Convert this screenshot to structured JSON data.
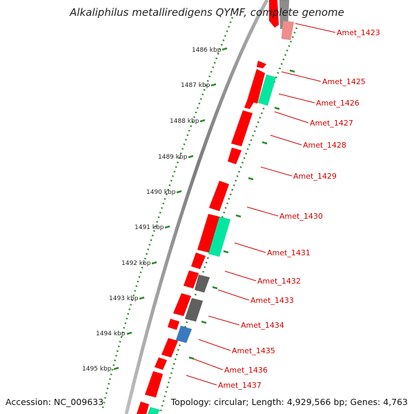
{
  "header": {
    "title": "Alkaliphilus metalliredigens QYMF, complete genome"
  },
  "footer": {
    "accession": "Accession: NC_009633",
    "summary": "Topology: circular; Length: 4,929,566 bp; Genes: 4,763"
  },
  "ticks": [
    "1486 kbp",
    "1487 kbp",
    "1488 kbp",
    "1489 kbp",
    "1490 kbp",
    "1491 kbp",
    "1492 kbp",
    "1493 kbp",
    "1494 kbp",
    "1495 kbp"
  ],
  "gene_labels": [
    "Amet_1423",
    "Amet_1425",
    "Amet_1426",
    "Amet_1427",
    "Amet_1428",
    "Amet_1429",
    "Amet_1430",
    "Amet_1431",
    "Amet_1432",
    "Amet_1433",
    "Amet_1434",
    "Amet_1435",
    "Amet_1436",
    "Amet_1437"
  ],
  "colors": {
    "cds_red": "#ff0000",
    "cds_green": "#00e8a0",
    "cds_gray": "#606060",
    "cds_blue": "#3a7ac0",
    "label_red": "#d40000",
    "tick_green": "#2a8a2a",
    "backbone_gray": "#8a8a8a"
  }
}
